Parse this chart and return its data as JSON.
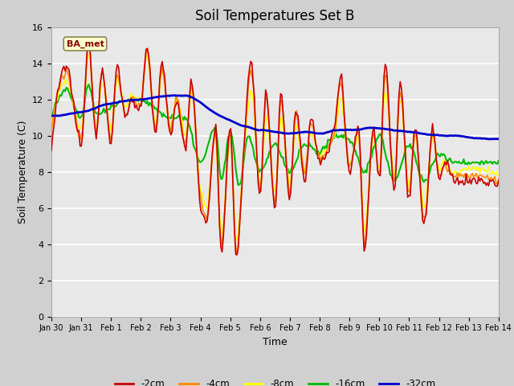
{
  "title": "Soil Temperatures Set B",
  "xlabel": "Time",
  "ylabel": "Soil Temperature (C)",
  "ylim": [
    0,
    16
  ],
  "yticks": [
    0,
    2,
    4,
    6,
    8,
    10,
    12,
    14,
    16
  ],
  "xtick_labels": [
    "Jan 30",
    "Jan 31",
    "Feb 1",
    "Feb 2",
    "Feb 3",
    "Feb 4",
    "Feb 5",
    "Feb 6",
    "Feb 7",
    "Feb 8",
    "Feb 9",
    "Feb 10",
    "Feb 11",
    "Feb 12",
    "Feb 13",
    "Feb 14"
  ],
  "legend_labels": [
    "-2cm",
    "-4cm",
    "-8cm",
    "-16cm",
    "-32cm"
  ],
  "legend_colors": [
    "#cc0000",
    "#ff8800",
    "#ffff00",
    "#00bb00",
    "#0000cc"
  ],
  "line_widths": [
    1.2,
    1.2,
    1.2,
    1.5,
    2.0
  ],
  "annotation_text": "BA_met",
  "annotation_color": "#880000",
  "annotation_bg": "#ffffcc",
  "plot_bg": "#e8e8e8",
  "fig_bg": "#d0d0d0",
  "title_fontsize": 12,
  "axis_label_fontsize": 9,
  "tick_fontsize": 8
}
